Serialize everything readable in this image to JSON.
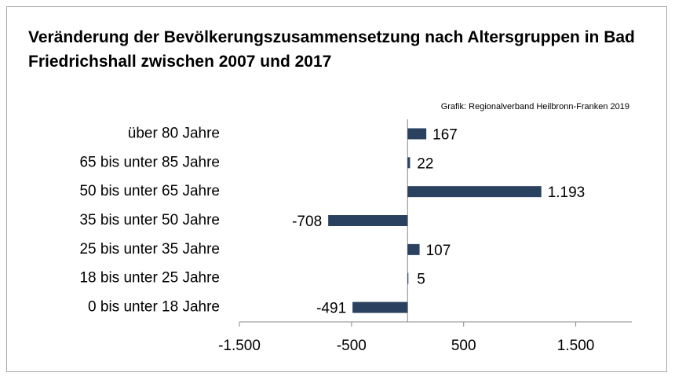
{
  "chart_data": {
    "type": "bar",
    "orientation": "horizontal",
    "title": "Veränderung der Bevölkerungszusammensetzung nach Altersgruppen in Bad Friedrichshall zwischen 2007 und 2017",
    "source": "Grafik: Regionalverband Heilbronn-Franken 2019",
    "categories": [
      "über 80 Jahre",
      "65 bis unter 85 Jahre",
      "50 bis unter 65 Jahre",
      "35 bis unter 50 Jahre",
      "25 bis unter 35 Jahre",
      "18 bis unter 25 Jahre",
      "0 bis unter 18 Jahre"
    ],
    "values": [
      167,
      22,
      1193,
      -708,
      107,
      5,
      -491
    ],
    "value_labels": [
      "167",
      "22",
      "1.193",
      "-708",
      "107",
      "5",
      "-491"
    ],
    "color": "#2a4260",
    "xlim": [
      -1500,
      2000
    ],
    "xticks": [
      {
        "value": -1500,
        "label": "-1.500"
      },
      -500,
      500,
      {
        "value": 1500,
        "label": "1.500"
      }
    ]
  }
}
